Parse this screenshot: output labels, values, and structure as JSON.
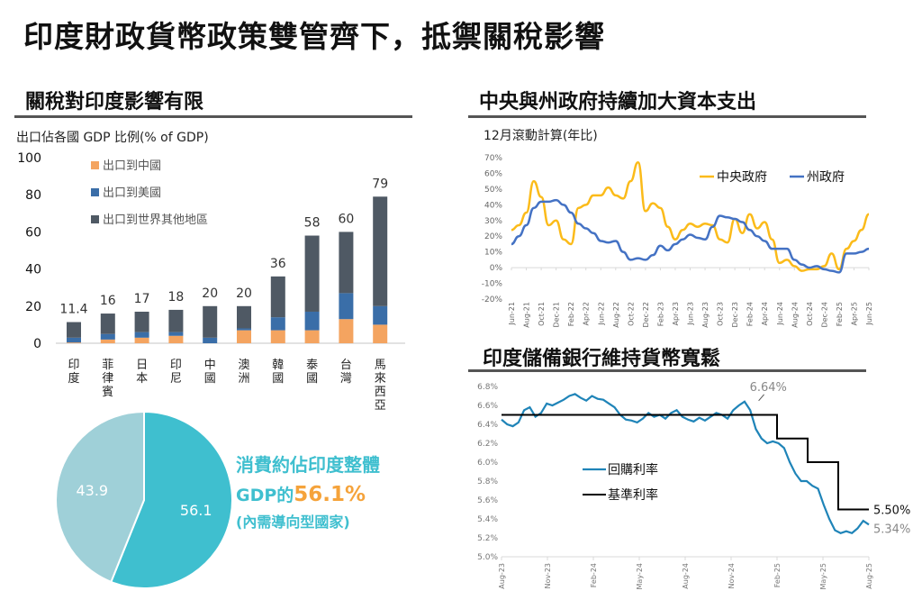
{
  "page": {
    "title": "印度財政貨幣政策雙管齊下，抵禦關稅影響"
  },
  "panels": {
    "tariff": {
      "title": "關稅對印度影響有限",
      "subtitle": "出口佔各國 GDP 比例(% of GDP)"
    },
    "capex": {
      "title": "中央與州政府持續加大資本支出",
      "subtitle": "12月滾動計算(年比)"
    },
    "rbi": {
      "title": "印度儲備銀行維持貨幣寬鬆"
    },
    "consumption_note": {
      "line1": "消費約佔印度整體",
      "line2_prefix": "GDP的",
      "line2_highlight": "56.1%",
      "line3": "(內需導向型國家)"
    }
  },
  "colors": {
    "china": "#f4a460",
    "us": "#3a6ea8",
    "other": "#4f5964",
    "pie_main": "#3fbfcf",
    "pie_rest": "#9fd0d8",
    "central": "#fbbb1a",
    "state": "#4472c4",
    "repo": "#1f84b8",
    "policy": "#000000",
    "highlight": "#f5a33b"
  },
  "chart_data": [
    {
      "id": "exports",
      "type": "bar",
      "stacked": true,
      "title": "出口佔各國 GDP 比例(% of GDP)",
      "categories": [
        "印度",
        "菲律賓",
        "日本",
        "印尼",
        "中國",
        "澳洲",
        "韓國",
        "泰國",
        "台灣",
        "馬來西亞"
      ],
      "series": [
        {
          "name": "出口到中國",
          "values": [
            0.4,
            2,
            3,
            4,
            0,
            7,
            7,
            7,
            13,
            10
          ]
        },
        {
          "name": "出口到美國",
          "values": [
            2.6,
            3,
            3,
            2,
            3,
            1,
            7,
            10,
            14,
            10
          ]
        },
        {
          "name": "出口到世界其他地區",
          "values": [
            8.4,
            11,
            11,
            12,
            17,
            12,
            22,
            41,
            33,
            59
          ]
        }
      ],
      "totals_labels": [
        "11.4",
        "16",
        "17",
        "18",
        "20",
        "20",
        "36",
        "58",
        "60",
        "79"
      ],
      "totals": [
        11.4,
        16,
        17,
        18,
        20,
        20,
        36,
        58,
        60,
        79
      ],
      "ylim": [
        0,
        100
      ],
      "yticks": [
        0,
        20,
        40,
        60,
        80,
        100
      ],
      "legend": "top-left",
      "grid": false
    },
    {
      "id": "consumption",
      "type": "pie",
      "slices": [
        {
          "label": "56.1",
          "value": 56.1
        },
        {
          "label": "43.9",
          "value": 43.9
        }
      ]
    },
    {
      "id": "capex",
      "type": "line",
      "title": "12月滾動計算(年比)",
      "x": [
        "Jun-21",
        "Jul-21",
        "Aug-21",
        "Sep-21",
        "Oct-21",
        "Nov-21",
        "Dec-21",
        "Jan-22",
        "Feb-22",
        "Mar-22",
        "Apr-22",
        "May-22",
        "Jun-22",
        "Jul-22",
        "Aug-22",
        "Sep-22",
        "Oct-22",
        "Nov-22",
        "Dec-22",
        "Jan-23",
        "Feb-23",
        "Mar-23",
        "Apr-23",
        "May-23",
        "Jun-23",
        "Jul-23",
        "Aug-23",
        "Sep-23",
        "Oct-23",
        "Nov-23",
        "Dec-23",
        "Jan-24",
        "Feb-24",
        "Mar-24",
        "Apr-24",
        "May-24",
        "Jun-24",
        "Jul-24",
        "Aug-24",
        "Sep-24",
        "Oct-24",
        "Nov-24",
        "Dec-24",
        "Jan-25",
        "Feb-25",
        "Mar-25",
        "Apr-25",
        "May-25",
        "Jun-25"
      ],
      "xticks": [
        "Jun-21",
        "Aug-21",
        "Oct-21",
        "Dec-21",
        "Feb-22",
        "Apr-22",
        "Jun-22",
        "Aug-22",
        "Oct-22",
        "Dec-22",
        "Feb-23",
        "Apr-23",
        "Jun-23",
        "Aug-23",
        "Oct-23",
        "Dec-23",
        "Feb-24",
        "Apr-24",
        "Jun-24",
        "Aug-24",
        "Oct-24",
        "Dec-24",
        "Feb-25",
        "Apr-25",
        "Jun-25"
      ],
      "series": [
        {
          "name": "中央政府",
          "values": [
            24,
            27,
            35,
            55,
            45,
            27,
            30,
            18,
            15,
            38,
            40,
            46,
            46,
            51,
            46,
            44,
            55,
            67,
            36,
            41,
            38,
            26,
            18,
            24,
            28,
            26,
            28,
            27,
            18,
            16,
            31,
            22,
            34,
            25,
            29,
            18,
            3,
            5,
            1,
            -2,
            -1,
            -1,
            1,
            9,
            -1,
            12,
            17,
            24,
            34
          ]
        },
        {
          "name": "州政府",
          "values": [
            15,
            20,
            27,
            38,
            42,
            42,
            43,
            40,
            35,
            28,
            25,
            22,
            17,
            16,
            17,
            10,
            5,
            6,
            5,
            8,
            14,
            11,
            15,
            18,
            21,
            19,
            18,
            26,
            33,
            32,
            31,
            29,
            24,
            20,
            17,
            12,
            12,
            12,
            5,
            2,
            0,
            1,
            -1,
            -2,
            -3,
            9,
            9,
            10,
            12
          ]
        }
      ],
      "ylim": [
        -20,
        70
      ],
      "yticks": [
        "-20%",
        "-10%",
        "0%",
        "10%",
        "20%",
        "30%",
        "40%",
        "50%",
        "60%",
        "70%"
      ],
      "legend": "top-right"
    },
    {
      "id": "rbi",
      "type": "line",
      "x_start": "Aug-23",
      "x_end": "Aug-25",
      "xticks": [
        "Aug-23",
        "Nov-23",
        "Feb-24",
        "May-24",
        "Aug-24",
        "Nov-24",
        "Feb-25",
        "May-25",
        "Aug-25"
      ],
      "series": [
        {
          "name": "回購利率",
          "values": [
            6.45,
            6.4,
            6.38,
            6.42,
            6.55,
            6.58,
            6.48,
            6.52,
            6.62,
            6.6,
            6.63,
            6.66,
            6.7,
            6.72,
            6.68,
            6.65,
            6.7,
            6.67,
            6.66,
            6.62,
            6.58,
            6.5,
            6.45,
            6.44,
            6.42,
            6.46,
            6.52,
            6.48,
            6.5,
            6.46,
            6.52,
            6.55,
            6.48,
            6.45,
            6.43,
            6.47,
            6.44,
            6.48,
            6.52,
            6.5,
            6.46,
            6.55,
            6.6,
            6.64,
            6.55,
            6.35,
            6.25,
            6.2,
            6.22,
            6.2,
            6.15,
            6.0,
            5.88,
            5.8,
            5.8,
            5.75,
            5.72,
            5.55,
            5.4,
            5.28,
            5.25,
            5.27,
            5.25,
            5.3,
            5.38,
            5.34
          ]
        },
        {
          "name": "基準利率",
          "steps": [
            [
              "Aug-23",
              6.5
            ],
            [
              "Feb-25",
              6.25
            ],
            [
              "Apr-25",
              6.0
            ],
            [
              "Jun-25",
              5.5
            ],
            [
              "Aug-25",
              5.5
            ]
          ]
        }
      ],
      "annotations": [
        {
          "text": "6.64%",
          "value": 6.64
        },
        {
          "text": "5.50%",
          "value": 5.5
        },
        {
          "text": "5.34%",
          "value": 5.34
        }
      ],
      "ylim": [
        5.0,
        6.8
      ],
      "yticks": [
        "5.0%",
        "5.2%",
        "5.4%",
        "5.6%",
        "5.8%",
        "6.0%",
        "6.2%",
        "6.4%",
        "6.6%",
        "6.8%"
      ],
      "legend": "bottom-left"
    }
  ]
}
